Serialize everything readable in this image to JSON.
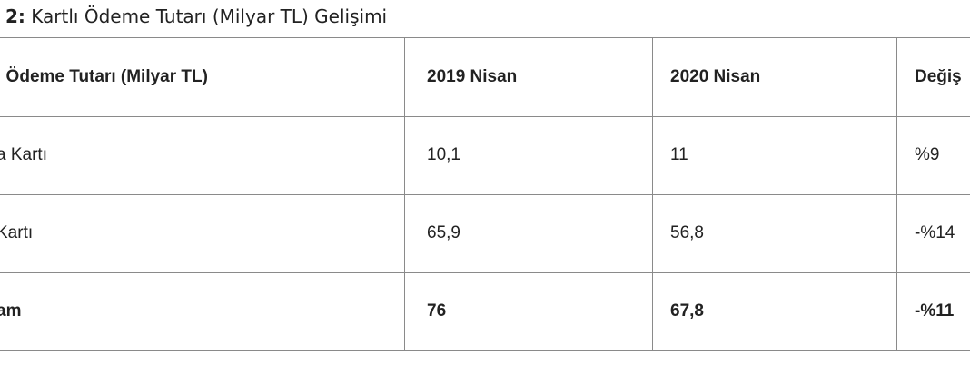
{
  "title": {
    "label": "2:",
    "text": "Kartlı Ödeme Tutarı (Milyar TL) Gelişimi"
  },
  "table": {
    "header": [
      "ı Ödeme Tutarı (Milyar TL)",
      "2019 Nisan",
      "2020 Nisan",
      "Değiş"
    ],
    "rows": [
      [
        "a Kartı",
        "10,1",
        "11",
        "%9"
      ],
      [
        "Kartı",
        "65,9",
        "56,8",
        "-%14"
      ],
      [
        "am",
        "76",
        "67,8",
        "-%11"
      ]
    ]
  }
}
